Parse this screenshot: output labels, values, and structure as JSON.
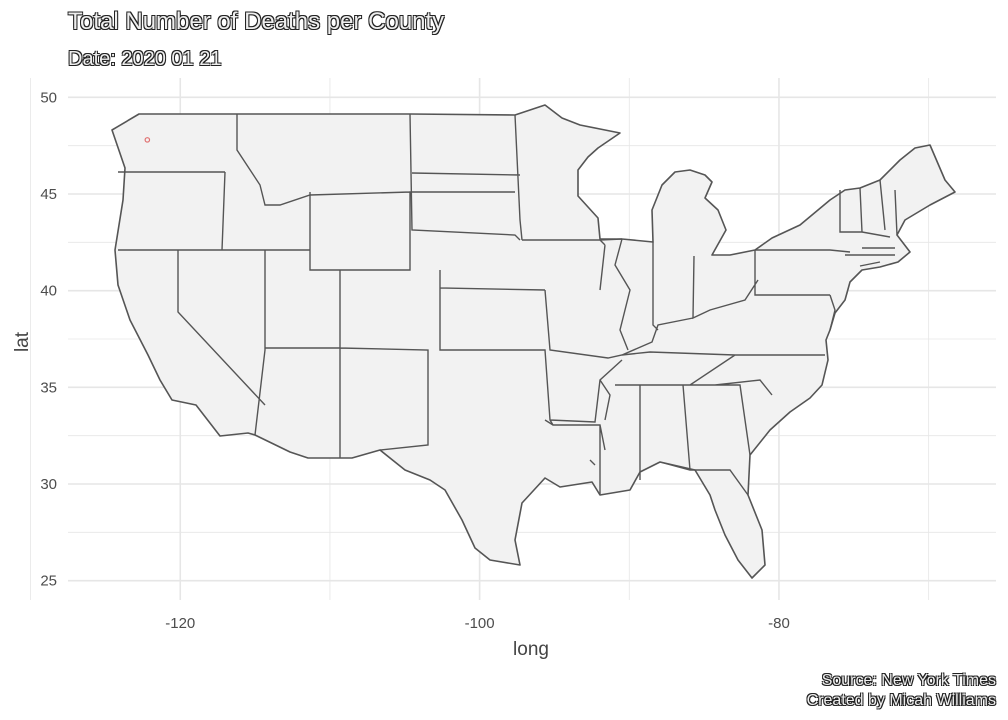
{
  "title": "Total Number of Deaths per County",
  "subtitle": "Date: 2020 01 21",
  "caption_source": "Source: New York Times",
  "caption_author": "Created by Micah Williams",
  "chart_data": {
    "type": "map",
    "xlabel": "long",
    "ylabel": "lat",
    "xlim": [
      -127.5,
      -65.5
    ],
    "ylim": [
      24,
      51
    ],
    "x_ticks": [
      -120,
      -100,
      -80
    ],
    "x_tick_labels": [
      "-120",
      "-100",
      "-80"
    ],
    "y_ticks": [
      25,
      30,
      35,
      40,
      45,
      50
    ],
    "y_tick_labels": [
      "25",
      "30",
      "35",
      "40",
      "45",
      "50"
    ],
    "grid": true,
    "points": [
      {
        "long": -122.2,
        "lat": 47.8,
        "value": 0
      }
    ],
    "colors": {
      "state_fill": "#f2f2f2",
      "state_border": "#555555",
      "grid": "#e6e6e6",
      "point": "#e07070"
    }
  }
}
